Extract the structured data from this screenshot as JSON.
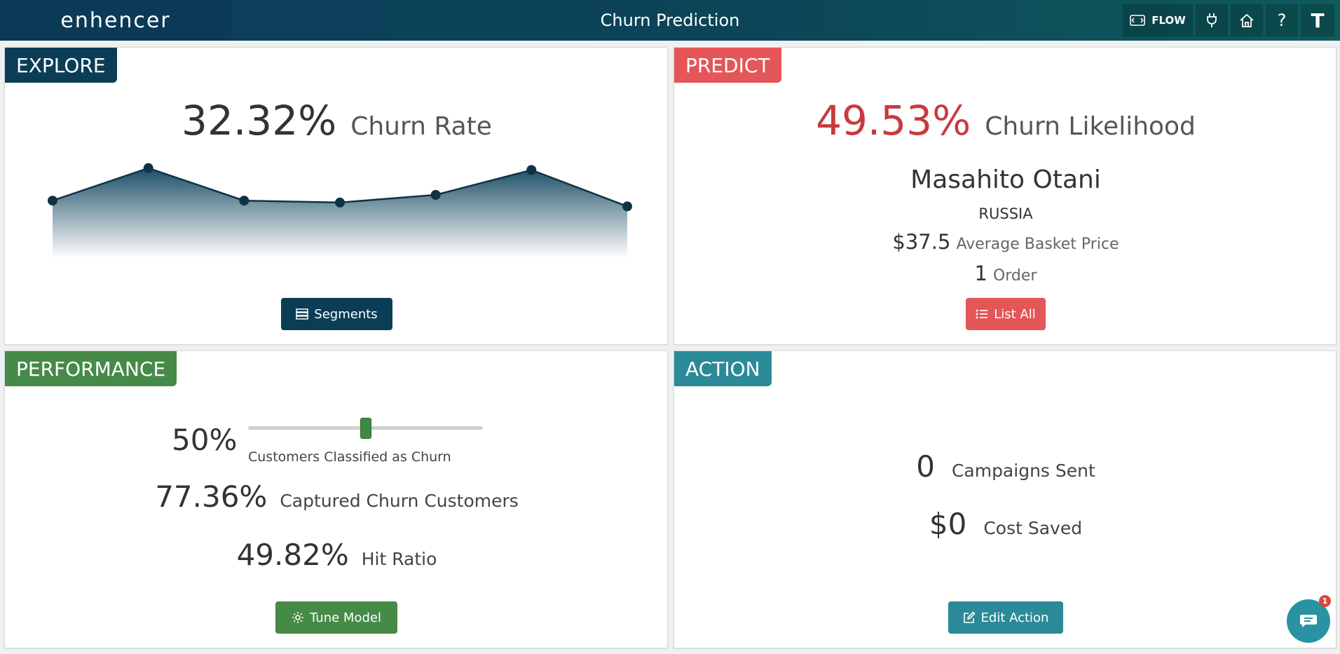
{
  "app": {
    "brand": "enhencer",
    "title": "Churn Prediction"
  },
  "header_buttons": {
    "flow_label": "FLOW",
    "help_label": "?",
    "avatar_initial": "T"
  },
  "explore": {
    "tag": "EXPLORE",
    "rate_value": "32.32%",
    "rate_label": "Churn Rate",
    "button_label": "Segments",
    "color": "#0c3d57"
  },
  "chart_data": {
    "type": "area",
    "values": [
      60,
      77,
      60,
      59,
      63,
      76,
      57
    ],
    "ylim": [
      30,
      85
    ]
  },
  "predict": {
    "tag": "PREDICT",
    "likelihood_value": "49.53%",
    "likelihood_label": "Churn Likelihood",
    "customer_name": "Masahito Otani",
    "country": "RUSSIA",
    "basket_value": "$37.5",
    "basket_label": "Average Basket Price",
    "order_count": "1",
    "order_label": "Order",
    "button_label": "List All",
    "color": "#e45657",
    "value_color": "#c83a3f"
  },
  "performance": {
    "tag": "PERFORMANCE",
    "threshold_value": "50%",
    "threshold_label": "Customers Classified as Churn",
    "threshold_fraction": 0.5,
    "captured_value": "77.36%",
    "captured_label": "Captured Churn Customers",
    "hit_value": "49.82%",
    "hit_label": "Hit Ratio",
    "button_label": "Tune Model",
    "color": "#468a48"
  },
  "action": {
    "tag": "ACTION",
    "campaigns_value": "0",
    "campaigns_label": "Campaigns Sent",
    "cost_value": "$0",
    "cost_label": "Cost Saved",
    "button_label": "Edit Action",
    "color": "#2b8a97"
  },
  "chat": {
    "badge_count": "1"
  }
}
